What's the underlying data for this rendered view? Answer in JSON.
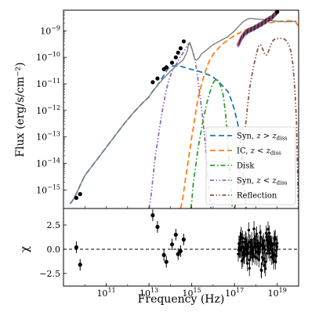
{
  "chart_data": [
    {
      "type": "line",
      "panel": "sed",
      "xlabel": "",
      "ylabel": "Flux (erg/s/cm⁻²)",
      "xscale": "log",
      "yscale": "log",
      "xlim": [
        1000000000.0,
        1e+20
      ],
      "ylim": [
        2e-16,
        6e-09
      ],
      "xticks": [
        {
          "value": 100000000000.0,
          "base": "10",
          "exp": "11"
        },
        {
          "value": 10000000000000.0,
          "base": "10",
          "exp": "13"
        },
        {
          "value": 1000000000000000.0,
          "base": "10",
          "exp": "15"
        },
        {
          "value": 1e+17,
          "base": "10",
          "exp": "17"
        },
        {
          "value": 1e+19,
          "base": "10",
          "exp": "19"
        }
      ],
      "yticks": [
        {
          "value": 1e-15,
          "base": "10",
          "exp": "−15"
        },
        {
          "value": 1e-14,
          "base": "10",
          "exp": "−14"
        },
        {
          "value": 1e-13,
          "base": "10",
          "exp": "−13"
        },
        {
          "value": 1e-12,
          "base": "10",
          "exp": "−12"
        },
        {
          "value": 1e-11,
          "base": "10",
          "exp": "−11"
        },
        {
          "value": 1e-10,
          "base": "10",
          "exp": "−10"
        },
        {
          "value": 1e-09,
          "base": "10",
          "exp": "−9"
        }
      ],
      "legend_position": "lower-right",
      "grid": false,
      "series": [
        {
          "key": "total",
          "name": "",
          "style": "solid",
          "color": "#7f7f7f",
          "x": [
            2000000000.0,
            10000000000.0,
            100000000000.0,
            1000000000000.0,
            10000000000000.0,
            30000000000000.0,
            100000000000000.0,
            400000000000000.0,
            600000000000000.0,
            750000000000000.0,
            900000000000000.0,
            1500000000000000.0,
            3000000000000000.0,
            1e+16,
            5e+16,
            1e+17,
            2e+17,
            3e+17,
            5e+17,
            1e+18,
            3e+18,
            1e+19,
            3e+19,
            8e+19
          ],
          "y": [
            3e-16,
            3.5e-15,
            4e-14,
            4.5e-13,
            3.2e-12,
            1.05e-11,
            3e-11,
            8e-11,
            1.6e-10,
            3.5e-10,
            2.8e-10,
            8e-11,
            1.4e-10,
            3e-10,
            6e-10,
            1e-09,
            1.8e-09,
            2.4e-09,
            2.9e-09,
            2.8e-09,
            2.6e-09,
            2.3e-09,
            2.2e-09,
            2.3e-09
          ]
        },
        {
          "key": "syn_out",
          "name": "Syn, z > z_diss",
          "label_main": "Syn, ",
          "label_math": "z > z",
          "label_sub": "diss",
          "style": "dashed",
          "color": "#1f77b4",
          "x": [
            2000000000.0,
            10000000000.0,
            100000000000.0,
            1000000000000.0,
            10000000000000.0,
            30000000000000.0,
            100000000000000.0,
            1000000000000000.0,
            1e+16,
            5e+16,
            1e+17,
            2e+17,
            3.5e+17
          ],
          "y": [
            3e-16,
            3.5e-15,
            4e-14,
            4.5e-13,
            3.2e-12,
            1.1e-11,
            4.5e-11,
            3.5e-11,
            1.8e-11,
            5e-12,
            1e-12,
            6e-14,
            2e-16
          ]
        },
        {
          "key": "ic_in",
          "name": "IC, z < z_diss",
          "label_main": "IC, ",
          "label_math": "z < z",
          "label_sub": "diss",
          "style": "dashed",
          "color": "#ff7f0e",
          "x": [
            300000000000000.0,
            600000000000000.0,
            1000000000000000.0,
            2000000000000000.0,
            5000000000000000.0,
            1e+16,
            3e+16,
            1e+17,
            3e+17,
            1e+18,
            3e+18,
            1e+19,
            3e+19,
            7e+19,
            1e+20
          ],
          "y": [
            2e-16,
            6e-15,
            1e-13,
            3e-12,
            4e-11,
            1.3e-10,
            3.3e-10,
            6.5e-10,
            1.05e-09,
            1.5e-09,
            1.9e-09,
            2.2e-09,
            2.4e-09,
            2.2e-09,
            1.5e-09
          ]
        },
        {
          "key": "disk",
          "name": "Disk",
          "label_main": "Disk",
          "label_math": "",
          "label_sub": "",
          "style": "dashdot",
          "color": "#2ca02c",
          "x": [
            900000000000000.0,
            1200000000000000.0,
            2000000000000000.0,
            4000000000000000.0,
            8000000000000000.0,
            1.3e+16,
            1.8e+16,
            3e+16,
            4.5e+16,
            6e+16,
            8e+16
          ],
          "y": [
            2e-16,
            2e-15,
            4e-14,
            8e-13,
            6.5e-12,
            1.4e-11,
            1.2e-11,
            3.5e-12,
            2e-13,
            5e-15,
            2e-16
          ]
        },
        {
          "key": "syn_in",
          "name": "Syn, z < z_diss",
          "label_main": "Syn, ",
          "label_math": "z < z",
          "label_sub": "diss",
          "style": "dashdotdot",
          "color": "#9467bd",
          "x": [
            10000000000000.0,
            20000000000000.0,
            50000000000000.0,
            100000000000000.0,
            200000000000000.0,
            400000000000000.0,
            600000000000000.0,
            750000000000000.0,
            900000000000000.0,
            1500000000000000.0,
            2500000000000000.0,
            4000000000000000.0,
            6000000000000000.0,
            8000000000000000.0
          ],
          "y": [
            2e-16,
            2e-14,
            2e-12,
            2e-11,
            6e-11,
            1.5e-10,
            2.6e-10,
            3.2e-10,
            2.5e-10,
            6e-11,
            3e-12,
            1e-13,
            2e-15,
            2e-16
          ]
        },
        {
          "key": "refl",
          "name": "Reflection",
          "label_main": "Reflection",
          "label_math": "",
          "label_sub": "",
          "style": "dashdotdot",
          "color": "#8c564b",
          "x": [
            1e+17,
            2e+17,
            3.5e+17,
            5e+17,
            8e+17,
            1.5e+18,
            3e+18,
            6e+18,
            1e+19,
            2e+19,
            3e+19,
            4.5e+19,
            6e+19,
            8e+19,
            1e+20
          ],
          "y": [
            2e-16,
            1e-14,
            4e-13,
            6e-12,
            5e-11,
            3e-10,
            1.2e-10,
            4e-10,
            5e-10,
            5e-10,
            3.6e-10,
            1.5e-10,
            2e-11,
            3e-13,
            2e-16
          ]
        }
      ],
      "observations": {
        "radio": {
          "x": [
            4000000000.0,
            6000000000.0
          ],
          "y": [
            5e-16,
            7e-16
          ]
        },
        "optical": {
          "x": [
            15000000000000.0,
            25000000000000.0,
            50000000000000.0,
            65000000000000.0,
            120000000000000.0,
            180000000000000.0,
            230000000000000.0,
            300000000000000.0,
            420000000000000.0
          ],
          "y": [
            1.15e-11,
            1.6e-11,
            3.6e-11,
            4.2e-11,
            6.3e-11,
            1e-10,
            1.5e-10,
            2.2e-10,
            4e-10
          ]
        },
        "xray": {
          "color": "#e377c2",
          "x": [
            1.5e+17,
            2e+17,
            3e+17,
            5e+17,
            8e+17,
            1.2e+18,
            2e+18,
            3e+18,
            5e+18,
            7e+18,
            1e+19
          ],
          "y": [
            3e-10,
            5e-10,
            8e-10,
            1.05e-09,
            1.25e-09,
            1.5e-09,
            1.9e-09,
            2.4e-09,
            3e-09,
            3.8e-09,
            5.2e-09
          ]
        }
      }
    },
    {
      "type": "scatter",
      "panel": "residuals",
      "xlabel": "Frequency (Hz)",
      "ylabel": "χ",
      "xscale": "log",
      "xlim": [
        1000000000.0,
        1e+20
      ],
      "ylim": [
        -3.8,
        4.2
      ],
      "yticks": [
        {
          "value": 2.5,
          "label": "2.5"
        },
        {
          "value": 0.0,
          "label": "0.0"
        },
        {
          "value": -2.5,
          "label": "−2.5"
        }
      ],
      "zero_line": true,
      "points": {
        "x": [
          4000000000.0,
          6000000000.0,
          15000000000000.0,
          25000000000000.0,
          50000000000000.0,
          65000000000000.0,
          120000000000000.0,
          180000000000000.0,
          230000000000000.0,
          300000000000000.0,
          420000000000000.0
        ],
        "y": [
          0.2,
          -1.6,
          3.5,
          2.3,
          -0.6,
          -1.3,
          0.5,
          1.5,
          -0.5,
          -0.2,
          1.0
        ],
        "yerr": [
          0.6,
          0.6,
          0.6,
          0.6,
          0.6,
          0.6,
          0.6,
          0.6,
          0.6,
          0.6,
          0.6
        ]
      },
      "xray_band": {
        "x_range": [
          1.5e+17,
          1e+19
        ],
        "spread": 1.7,
        "err": 0.8,
        "count": 120
      }
    }
  ]
}
